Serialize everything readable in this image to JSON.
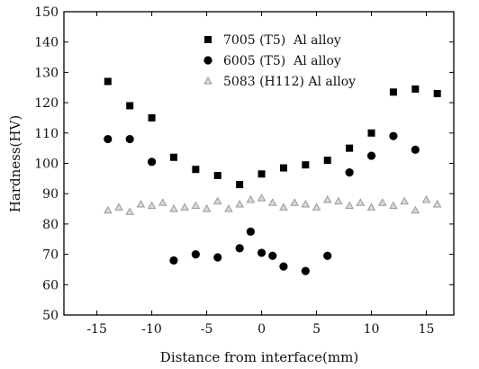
{
  "chart_data": {
    "type": "scatter",
    "xlabel": "Distance from interface(mm)",
    "ylabel": "Hardness(HV)",
    "xlim": [
      -18,
      17.5
    ],
    "ylim": [
      50,
      150
    ],
    "xticks": [
      -15,
      -10,
      -5,
      0,
      5,
      10,
      15
    ],
    "xtick_labels": [
      "-15",
      "-10",
      "-5",
      "0",
      "5",
      "10",
      "15"
    ],
    "yticks": [
      50,
      60,
      70,
      80,
      90,
      100,
      110,
      120,
      130,
      140,
      150
    ],
    "ytick_labels": [
      "50",
      "60",
      "70",
      "80",
      "90",
      "100",
      "110",
      "120",
      "130",
      "140",
      "150"
    ],
    "grid": false,
    "legend_position": "top-center",
    "series": [
      {
        "name": "7005 (T5)  Al alloy",
        "marker": "square",
        "color": "#000000",
        "points": [
          [
            -14,
            127
          ],
          [
            -12,
            119
          ],
          [
            -10,
            115
          ],
          [
            -8,
            102
          ],
          [
            -6,
            98
          ],
          [
            -4,
            96
          ],
          [
            -2,
            93
          ],
          [
            0,
            96.5
          ],
          [
            2,
            98.5
          ],
          [
            4,
            99.5
          ],
          [
            6,
            101
          ],
          [
            8,
            105
          ],
          [
            10,
            110
          ],
          [
            12,
            123.5
          ],
          [
            14,
            124.5
          ],
          [
            16,
            123
          ]
        ]
      },
      {
        "name": "6005 (T5)  Al alloy",
        "marker": "circle",
        "color": "#000000",
        "points": [
          [
            -14,
            108
          ],
          [
            -12,
            108
          ],
          [
            -10,
            100.5
          ],
          [
            -8,
            68
          ],
          [
            -6,
            70
          ],
          [
            -4,
            69
          ],
          [
            -2,
            72
          ],
          [
            -1,
            77.5
          ],
          [
            0,
            70.5
          ],
          [
            1,
            69.5
          ],
          [
            2,
            66
          ],
          [
            4,
            64.5
          ],
          [
            6,
            69.5
          ],
          [
            8,
            97
          ],
          [
            10,
            102.5
          ],
          [
            12,
            109
          ],
          [
            14,
            104.5
          ]
        ]
      },
      {
        "name": "5083 (H112) Al alloy",
        "marker": "triangle",
        "color": "#9a9a9a",
        "points": [
          [
            -14,
            84.5
          ],
          [
            -13,
            85.5
          ],
          [
            -12,
            84
          ],
          [
            -11,
            86.5
          ],
          [
            -10,
            86
          ],
          [
            -9,
            87
          ],
          [
            -8,
            85
          ],
          [
            -7,
            85.5
          ],
          [
            -6,
            86
          ],
          [
            -5,
            85
          ],
          [
            -4,
            87.5
          ],
          [
            -3,
            85
          ],
          [
            -2,
            86.5
          ],
          [
            -1,
            88
          ],
          [
            0,
            88.5
          ],
          [
            1,
            87
          ],
          [
            2,
            85.5
          ],
          [
            3,
            87
          ],
          [
            4,
            86.5
          ],
          [
            5,
            85.5
          ],
          [
            6,
            88
          ],
          [
            7,
            87.5
          ],
          [
            8,
            86
          ],
          [
            9,
            87
          ],
          [
            10,
            85.5
          ],
          [
            11,
            87
          ],
          [
            12,
            86
          ],
          [
            13,
            87.5
          ],
          [
            14,
            84.5
          ],
          [
            15,
            88
          ],
          [
            16,
            86.5
          ]
        ]
      }
    ]
  }
}
